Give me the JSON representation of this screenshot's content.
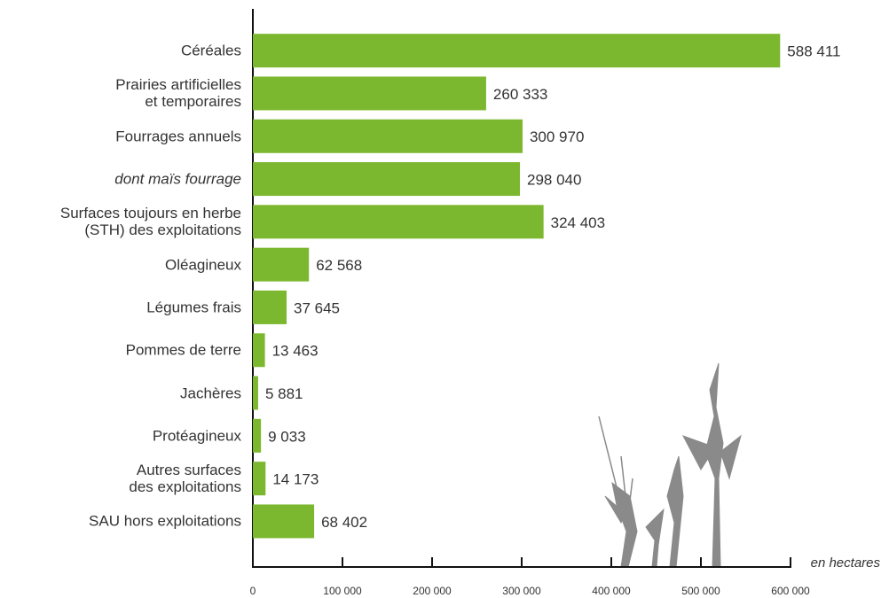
{
  "chart_data": {
    "type": "bar",
    "orientation": "horizontal",
    "categories": [
      "Céréales",
      "Prairies artificielles\net temporaires",
      "Fourrages annuels",
      "dont maïs fourrage",
      "Surfaces toujours en herbe\n(STH) des exploitations",
      "Oléagineux",
      "Légumes frais",
      "Pommes de terre",
      "Jachères",
      "Protéagineux",
      "Autres surfaces\ndes exploitations",
      "SAU hors exploitations"
    ],
    "italic_categories": [
      3
    ],
    "values": [
      588411,
      260333,
      300970,
      298040,
      324403,
      62568,
      37645,
      13463,
      5881,
      9033,
      14173,
      68402
    ],
    "value_labels": [
      "588 411",
      "260 333",
      "300 970",
      "298 040",
      "324 403",
      "62 568",
      "37 645",
      "13 463",
      "5 881",
      "9 033",
      "14 173",
      "68 402"
    ],
    "color": "#7cb82f",
    "xlim": [
      0,
      600000
    ],
    "xticks": [
      0,
      {
        "value": 100000,
        "label": "100 000"
      },
      {
        "value": 200000,
        "label": "200 000"
      },
      {
        "value": 300000,
        "label": "300 000"
      },
      {
        "value": 400000,
        "label": "400 000"
      },
      {
        "value": 500000,
        "label": "500 000"
      },
      {
        "value": 600000,
        "label": "600 000"
      }
    ],
    "x_label": "en hectares"
  }
}
